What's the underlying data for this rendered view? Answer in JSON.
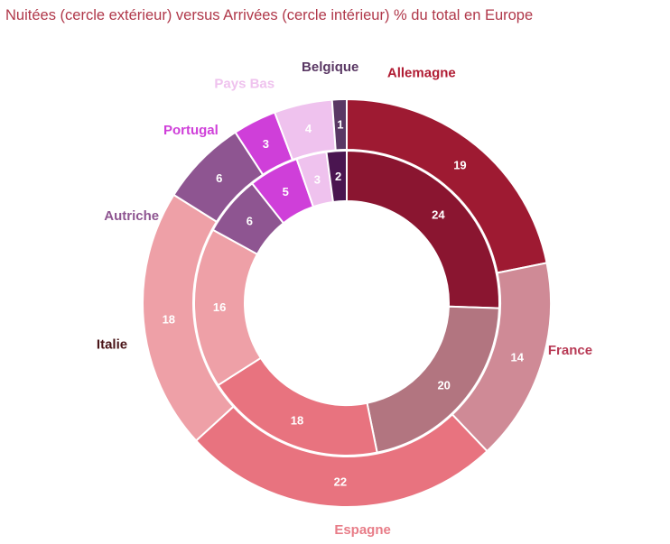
{
  "chart_data": {
    "type": "pie",
    "title": "Nuitées (cercle extérieur) versus Arrivées (cercle intérieur) % du total en Europe",
    "categories": [
      "Allemagne",
      "France",
      "Espagne",
      "Italie",
      "Autriche",
      "Portugal",
      "Pays Bas",
      "Belgique"
    ],
    "series": [
      {
        "ring": "outer",
        "values": [
          19,
          14,
          22,
          18,
          6,
          3,
          4,
          1
        ],
        "colors": [
          "#9e1a32",
          "#cf8a96",
          "#e8737f",
          "#eea0a7",
          "#8e5591",
          "#cf3fd9",
          "#efc2ee",
          "#5a3864"
        ]
      },
      {
        "ring": "inner",
        "values": [
          24,
          20,
          18,
          16,
          6,
          5,
          3,
          2
        ],
        "colors": [
          "#8a1530",
          "#b27580",
          "#e8737f",
          "#eea0a7",
          "#8e5591",
          "#cf3fd9",
          "#efc2ee",
          "#4a1550"
        ]
      }
    ],
    "label_colors": [
      "#b01c33",
      "#b83a55",
      "#e87d88",
      "#4a1518",
      "#8e5591",
      "#cf3fd9",
      "#efc2ee",
      "#5a3864"
    ],
    "legend": "none"
  }
}
